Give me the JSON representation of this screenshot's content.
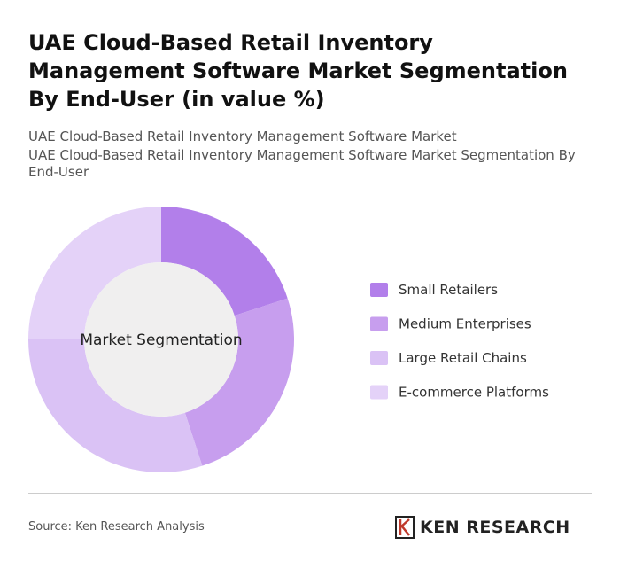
{
  "chart_data": {
    "type": "donut",
    "title": "UAE Cloud-Based Retail Inventory Management Software Market Segmentation By End-User (in value %)",
    "subtitles": [
      "UAE Cloud-Based Retail Inventory Management Software Market",
      "UAE Cloud-Based Retail Inventory Management Software Market Segmentation By End-User"
    ],
    "center_label": "Market Segmentation",
    "categories": [
      "Small Retailers",
      "Medium Enterprises",
      "Large Retail Chains",
      "E-commerce Platforms"
    ],
    "values": [
      20,
      25,
      30,
      25
    ],
    "colors": [
      "#b27fea",
      "#c79eee",
      "#dac2f5",
      "#e4d2f8"
    ]
  },
  "source": "Source: Ken Research Analysis",
  "brand": "KEN RESEARCH"
}
